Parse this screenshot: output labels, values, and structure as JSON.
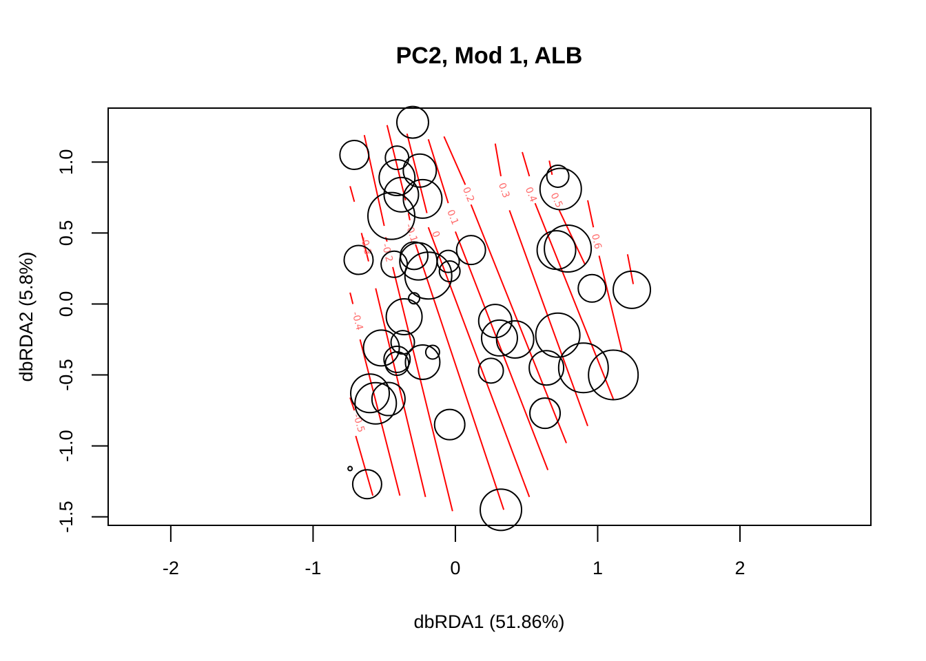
{
  "chart_data": {
    "type": "scatter",
    "title": "PC2, Mod 1, ALB",
    "xlabel": "dbRDA1 (51.86%)",
    "ylabel": "dbRDA2 (5.8%)",
    "xlim": [
      -2.44,
      2.92
    ],
    "ylim": [
      -1.56,
      1.38
    ],
    "xticks": [
      -2,
      -1,
      0,
      1,
      2
    ],
    "yticks": [
      -1.5,
      -1.0,
      -0.5,
      0.0,
      0.5,
      1.0
    ],
    "xtick_labels": [
      "-2",
      "-1",
      "0",
      "1",
      "2"
    ],
    "ytick_labels": [
      "-1.5",
      "-1.0",
      "-0.5",
      "0.0",
      "0.5",
      "1.0"
    ],
    "grid": false,
    "legend": "none",
    "marker_color": "#000000",
    "contour_color": "#ff0000",
    "contour_label_color": "#ff6b6b",
    "points": [
      {
        "x": -0.3,
        "y": 1.28,
        "size": 23
      },
      {
        "x": -0.71,
        "y": 1.05,
        "size": 21
      },
      {
        "x": -0.41,
        "y": 1.03,
        "size": 17
      },
      {
        "x": -0.25,
        "y": 0.94,
        "size": 24
      },
      {
        "x": -0.41,
        "y": 0.89,
        "size": 26
      },
      {
        "x": -0.38,
        "y": 0.77,
        "size": 25
      },
      {
        "x": -0.23,
        "y": 0.74,
        "size": 28
      },
      {
        "x": -0.45,
        "y": 0.62,
        "size": 34
      },
      {
        "x": 0.72,
        "y": 0.9,
        "size": 16
      },
      {
        "x": 0.74,
        "y": 0.81,
        "size": 30
      },
      {
        "x": 0.11,
        "y": 0.38,
        "size": 21
      },
      {
        "x": 0.71,
        "y": 0.38,
        "size": 28
      },
      {
        "x": 0.79,
        "y": 0.39,
        "size": 34
      },
      {
        "x": -0.68,
        "y": 0.31,
        "size": 21
      },
      {
        "x": -0.43,
        "y": 0.28,
        "size": 19
      },
      {
        "x": -0.29,
        "y": 0.34,
        "size": 20
      },
      {
        "x": -0.26,
        "y": 0.3,
        "size": 27
      },
      {
        "x": -0.19,
        "y": 0.2,
        "size": 34
      },
      {
        "x": -0.05,
        "y": 0.3,
        "size": 16
      },
      {
        "x": -0.04,
        "y": 0.23,
        "size": 15
      },
      {
        "x": 0.96,
        "y": 0.11,
        "size": 20
      },
      {
        "x": 1.24,
        "y": 0.1,
        "size": 27
      },
      {
        "x": -0.29,
        "y": 0.04,
        "size": 8
      },
      {
        "x": -0.36,
        "y": -0.09,
        "size": 26
      },
      {
        "x": 0.28,
        "y": -0.12,
        "size": 24
      },
      {
        "x": 0.31,
        "y": -0.24,
        "size": 26
      },
      {
        "x": 0.42,
        "y": -0.25,
        "size": 27
      },
      {
        "x": 0.72,
        "y": -0.22,
        "size": 32
      },
      {
        "x": -0.37,
        "y": -0.27,
        "size": 17
      },
      {
        "x": -0.52,
        "y": -0.31,
        "size": 26
      },
      {
        "x": -0.16,
        "y": -0.34,
        "size": 10
      },
      {
        "x": -0.41,
        "y": -0.39,
        "size": 19
      },
      {
        "x": -0.41,
        "y": -0.42,
        "size": 17
      },
      {
        "x": -0.23,
        "y": -0.41,
        "size": 25
      },
      {
        "x": 0.25,
        "y": -0.47,
        "size": 18
      },
      {
        "x": 0.64,
        "y": -0.45,
        "size": 25
      },
      {
        "x": 0.9,
        "y": -0.45,
        "size": 36
      },
      {
        "x": 1.11,
        "y": -0.5,
        "size": 36
      },
      {
        "x": -0.6,
        "y": -0.63,
        "size": 28
      },
      {
        "x": -0.56,
        "y": -0.7,
        "size": 30
      },
      {
        "x": -0.47,
        "y": -0.67,
        "size": 24
      },
      {
        "x": -0.04,
        "y": -0.85,
        "size": 22
      },
      {
        "x": 0.63,
        "y": -0.77,
        "size": 22
      },
      {
        "x": -0.74,
        "y": -1.16,
        "size": 3
      },
      {
        "x": -0.62,
        "y": -1.27,
        "size": 21
      },
      {
        "x": 0.32,
        "y": -1.45,
        "size": 30
      }
    ],
    "contours": [
      {
        "label": "-0.5",
        "segments": [
          [
            [
              -0.74,
              -0.66
            ],
            [
              -0.71,
              -0.75
            ]
          ],
          [
            [
              -0.7,
              -0.93
            ],
            [
              -0.58,
              -1.35
            ]
          ]
        ],
        "label_pos": [
          -0.68,
          -0.84
        ]
      },
      {
        "label": "-0.4",
        "segments": [
          [
            [
              -0.74,
              0.08
            ],
            [
              -0.72,
              0.0
            ]
          ],
          [
            [
              -0.67,
              -0.25
            ],
            [
              -0.39,
              -1.35
            ]
          ]
        ],
        "label_pos": [
          -0.69,
          -0.12
        ]
      },
      {
        "label": "-0.3",
        "segments": [
          [
            [
              -0.74,
              0.83
            ],
            [
              -0.71,
              0.72
            ]
          ],
          [
            [
              -0.66,
              0.5
            ],
            [
              -0.61,
              0.3
            ]
          ],
          [
            [
              -0.56,
              0.11
            ],
            [
              -0.21,
              -1.36
            ]
          ]
        ],
        "label_pos": [
          -0.63,
          0.41
        ]
      },
      {
        "label": "-0.2",
        "segments": [
          [
            [
              -0.64,
              1.19
            ],
            [
              -0.5,
              0.55
            ]
          ],
          [
            [
              -0.49,
              0.47
            ],
            [
              -0.48,
              0.44
            ]
          ],
          [
            [
              -0.44,
              0.26
            ],
            [
              -0.02,
              -1.46
            ]
          ]
        ],
        "label_pos": [
          -0.48,
          0.36
        ]
      },
      {
        "label": "-0.1",
        "segments": [
          [
            [
              -0.48,
              1.26
            ],
            [
              -0.35,
              0.73
            ]
          ],
          [
            [
              -0.33,
              0.64
            ],
            [
              -0.32,
              0.59
            ]
          ],
          [
            [
              -0.28,
              0.42
            ],
            [
              0.34,
              -1.45
            ]
          ]
        ],
        "label_pos": [
          -0.31,
          0.5
        ]
      },
      {
        "label": "0",
        "segments": [
          [
            [
              -0.34,
              1.2
            ],
            [
              -0.2,
              0.64
            ]
          ],
          [
            [
              -0.19,
              0.54
            ],
            [
              0.52,
              -1.36
            ]
          ]
        ],
        "label_pos": [
          -0.14,
          0.49
        ]
      },
      {
        "label": "0.1",
        "segments": [
          [
            [
              -0.19,
              1.16
            ],
            [
              -0.05,
              0.71
            ]
          ],
          [
            [
              -0.0,
              0.51
            ],
            [
              0.65,
              -1.17
            ]
          ]
        ],
        "label_pos": [
          -0.02,
          0.61
        ]
      },
      {
        "label": "0.2",
        "segments": [
          [
            [
              -0.08,
              1.18
            ],
            [
              0.07,
              0.84
            ]
          ],
          [
            [
              0.11,
              0.7
            ],
            [
              0.78,
              -0.98
            ]
          ]
        ],
        "label_pos": [
          0.09,
          0.77
        ]
      },
      {
        "label": "0.3",
        "segments": [
          [
            [
              0.28,
              1.13
            ],
            [
              0.32,
              0.9
            ]
          ],
          [
            [
              0.38,
              0.66
            ],
            [
              0.93,
              -0.86
            ]
          ]
        ],
        "label_pos": [
          0.34,
          0.8
        ]
      },
      {
        "label": "0.4",
        "segments": [
          [
            [
              0.47,
              1.07
            ],
            [
              0.52,
              0.9
            ]
          ],
          [
            [
              0.56,
              0.71
            ],
            [
              1.11,
              -0.67
            ]
          ]
        ],
        "label_pos": [
          0.53,
          0.77
        ]
      },
      {
        "label": "0.5",
        "segments": [
          [
            [
              0.66,
              1.01
            ],
            [
              0.68,
              0.91
            ]
          ],
          [
            [
              0.73,
              0.66
            ],
            [
              0.91,
              0.28
            ]
          ]
        ],
        "label_pos": [
          0.71,
          0.73
        ]
      },
      {
        "label": "0.6",
        "segments": [
          [
            [
              0.93,
              0.73
            ],
            [
              0.97,
              0.54
            ]
          ],
          [
            [
              1.01,
              0.34
            ],
            [
              1.17,
              -0.33
            ]
          ]
        ],
        "label_pos": [
          0.99,
          0.44
        ]
      },
      {
        "label": "",
        "segments": [
          [
            [
              1.21,
              0.35
            ],
            [
              1.25,
              0.14
            ]
          ]
        ],
        "label_pos": null
      }
    ]
  }
}
